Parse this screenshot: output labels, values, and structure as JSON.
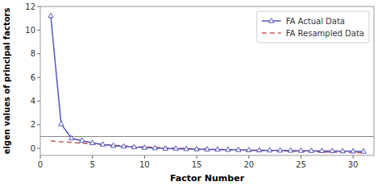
{
  "chart_data": {
    "type": "line",
    "x_label": "Factor Number",
    "y_label": "eigen values of principal factors",
    "x": [
      1,
      2,
      3,
      4,
      5,
      6,
      7,
      8,
      9,
      10,
      11,
      12,
      13,
      14,
      15,
      16,
      17,
      18,
      19,
      20,
      21,
      22,
      23,
      24,
      25,
      26,
      27,
      28,
      29,
      30,
      31
    ],
    "series": [
      {
        "name": "FA  Actual Data",
        "color": "#5555bb",
        "marker": "triangle",
        "line_style": "solid",
        "values": [
          11.2,
          2.05,
          0.85,
          0.65,
          0.45,
          0.32,
          0.22,
          0.16,
          0.1,
          0.06,
          0.02,
          -0.01,
          -0.03,
          -0.05,
          -0.07,
          -0.09,
          -0.1,
          -0.12,
          -0.13,
          -0.15,
          -0.16,
          -0.17,
          -0.18,
          -0.19,
          -0.2,
          -0.21,
          -0.22,
          -0.23,
          -0.24,
          -0.25,
          -0.27
        ]
      },
      {
        "name": "FA  Resampled Data",
        "color": "#cc5555",
        "marker": "none",
        "line_style": "dashed",
        "values": [
          0.62,
          0.55,
          0.5,
          0.43,
          0.37,
          0.31,
          0.26,
          0.21,
          0.16,
          0.12,
          0.08,
          0.05,
          0.02,
          -0.01,
          -0.04,
          -0.07,
          -0.09,
          -0.12,
          -0.14,
          -0.16,
          -0.18,
          -0.2,
          -0.22,
          -0.24,
          -0.26,
          -0.28,
          -0.3,
          -0.32,
          -0.34,
          -0.36,
          -0.38
        ]
      }
    ],
    "hlines": [
      {
        "value": 1.0,
        "color": "#888888"
      }
    ],
    "xlim": [
      0,
      32
    ],
    "ylim": [
      -0.6,
      12
    ],
    "xticks": [
      0,
      5,
      10,
      15,
      20,
      25,
      30
    ],
    "yticks": [
      0,
      2,
      4,
      6,
      8,
      10,
      12
    ],
    "grid": false,
    "legend": "upper right"
  }
}
